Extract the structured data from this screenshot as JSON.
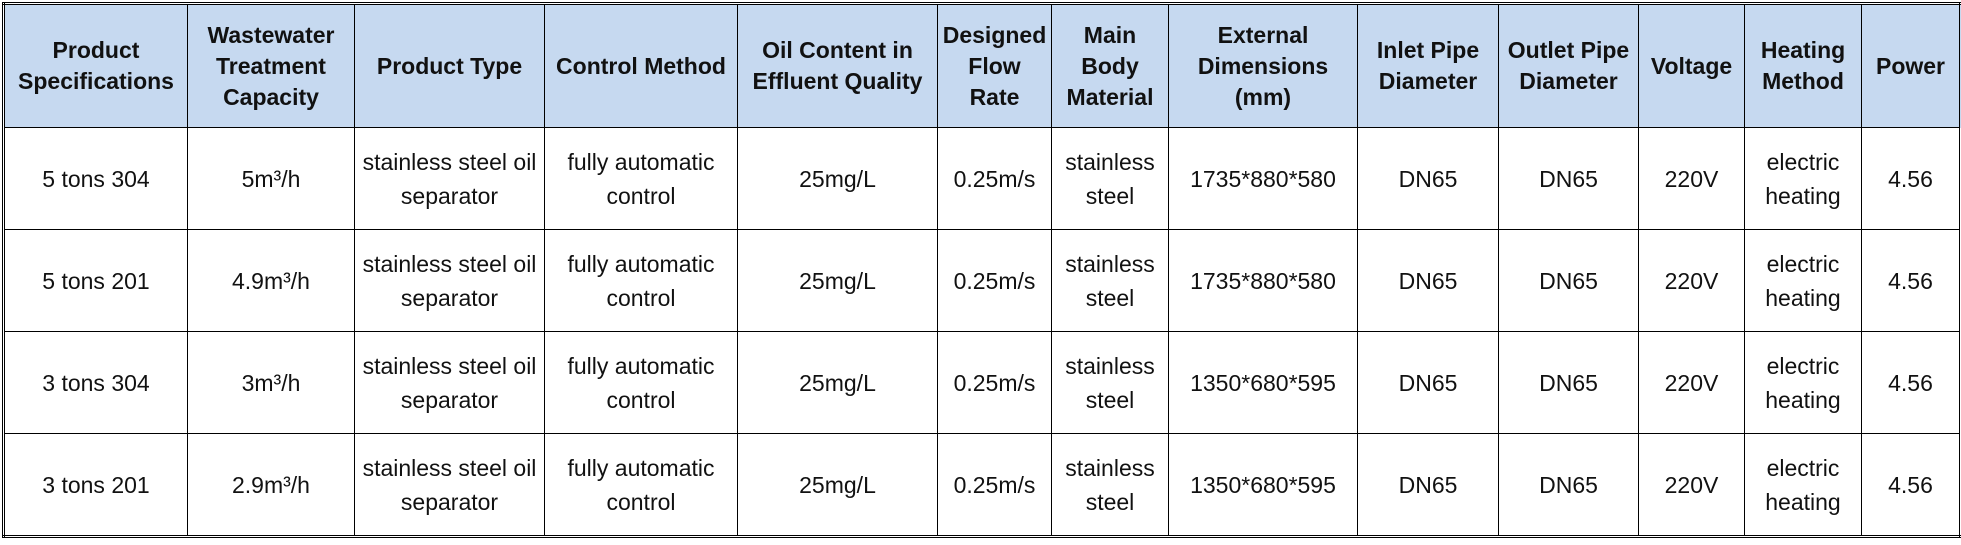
{
  "table": {
    "header": [
      "Product Specifications",
      "Wastewater Treatment Capacity",
      "Product Type",
      "Control Method",
      "Oil Content in Effluent Quality",
      "Designed Flow Rate",
      "Main Body Material",
      "External Dimensions (mm)",
      "Inlet Pipe Diameter",
      "Outlet Pipe Diameter",
      "Voltage",
      "Heating Method",
      "Power"
    ],
    "rows": [
      [
        "5 tons 304",
        "5m³/h",
        "stainless steel oil separator",
        "fully automatic control",
        "25mg/L",
        "0.25m/s",
        "stainless steel",
        "1735*880*580",
        "DN65",
        "DN65",
        "220V",
        "electric heating",
        "4.56"
      ],
      [
        "5 tons 201",
        "4.9m³/h",
        "stainless steel oil separator",
        "fully automatic control",
        "25mg/L",
        "0.25m/s",
        "stainless steel",
        "1735*880*580",
        "DN65",
        "DN65",
        "220V",
        "electric heating",
        "4.56"
      ],
      [
        "3 tons 304",
        "3m³/h",
        "stainless steel oil separator",
        "fully automatic control",
        "25mg/L",
        "0.25m/s",
        "stainless steel",
        "1350*680*595",
        "DN65",
        "DN65",
        "220V",
        "electric heating",
        "4.56"
      ],
      [
        "3 tons 201",
        "2.9m³/h",
        "stainless steel oil separator",
        "fully automatic control",
        "25mg/L",
        "0.25m/s",
        "stainless steel",
        "1350*680*595",
        "DN65",
        "DN65",
        "220V",
        "electric heating",
        "4.56"
      ]
    ]
  }
}
